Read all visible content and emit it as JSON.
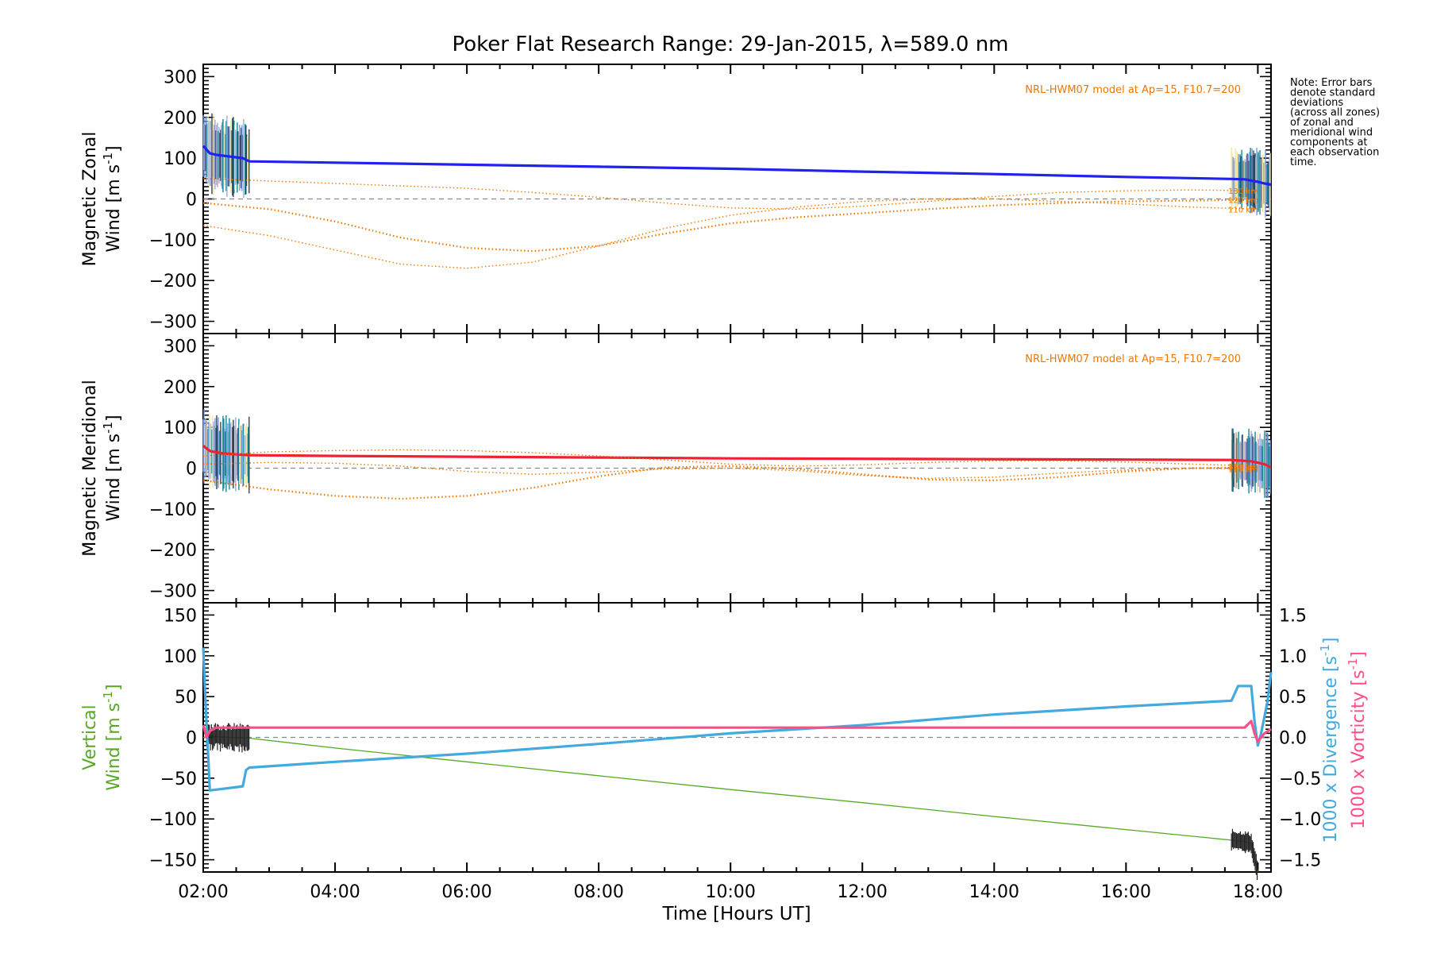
{
  "title": "Poker Flat Research Range: 29-Jan-2015, λ=589.0 nm",
  "xlabel": "Time [Hours UT]",
  "note": [
    "Note: Error bars",
    "denote standard",
    "deviations",
    "(across all zones)",
    "of zonal and",
    "meridional wind",
    "components at",
    "each observation",
    "time."
  ],
  "colors": {
    "zonal": "#2222ee",
    "meridional": "#ee2233",
    "model": "#ee7700",
    "vertical": "#55aa22",
    "divergence": "#44aadd",
    "vorticity": "#ff4d88",
    "err_yellow": "#f2e6a0",
    "err_lavender": "#a8a8d0",
    "err_blue": "#7799dd",
    "err_teal": "#118899",
    "zero_line": "#888888"
  },
  "chart_data": [
    {
      "type": "line",
      "id": "zonal",
      "ylabel_lines": [
        "Magnetic Zonal",
        "Wind [m s^-1]"
      ],
      "ylim": [
        -330,
        330
      ],
      "yticks": [
        300,
        200,
        100,
        0,
        -100,
        -200,
        -300
      ],
      "ytick_labels": [
        "300",
        "200",
        "100",
        "0",
        "−100",
        "−200",
        "−300"
      ],
      "xlim": [
        2.0,
        18.2
      ],
      "model_label": "NRL-HWM07 model at Ap=15, F10.7=200",
      "model_altitudes": [
        "130 km",
        "120 km",
        "110 km"
      ],
      "series": [
        {
          "name": "Magnetic Zonal Wind",
          "x": [
            2.0,
            2.1,
            2.2,
            2.4,
            2.6,
            2.7,
            4,
            6,
            8,
            10,
            12,
            14,
            16,
            17.6,
            17.8,
            18.0,
            18.1,
            18.2
          ],
          "y": [
            130,
            112,
            108,
            104,
            100,
            92,
            89,
            84,
            79,
            74,
            67,
            61,
            54,
            49,
            48,
            42,
            38,
            35
          ]
        },
        {
          "name": "Model 130 km",
          "x": [
            2.0,
            3,
            4,
            5,
            6,
            7,
            8,
            9,
            10,
            11,
            12,
            13,
            14,
            15,
            16,
            17,
            18
          ],
          "y": [
            50,
            44,
            38,
            32,
            26,
            16,
            4,
            -10,
            -22,
            -25,
            -18,
            -6,
            6,
            16,
            20,
            22,
            20
          ]
        },
        {
          "name": "Model 120 km",
          "x": [
            2.0,
            3,
            4,
            5,
            6,
            7,
            8,
            9,
            10,
            11,
            12,
            13,
            14,
            15,
            16,
            17,
            18
          ],
          "y": [
            -10,
            -25,
            -55,
            -95,
            -120,
            -128,
            -115,
            -85,
            -60,
            -45,
            -35,
            -25,
            -16,
            -10,
            -6,
            -4,
            -2
          ]
        },
        {
          "name": "Model 110 km",
          "x": [
            2.0,
            3,
            4,
            5,
            6,
            7,
            8,
            9,
            10,
            11,
            12,
            13,
            14,
            15,
            16,
            17,
            18
          ],
          "y": [
            -65,
            -90,
            -125,
            -160,
            -170,
            -155,
            -115,
            -72,
            -40,
            -20,
            -6,
            0,
            0,
            -6,
            -12,
            -20,
            -25
          ]
        }
      ]
    },
    {
      "type": "line",
      "id": "meridional",
      "ylabel_lines": [
        "Magnetic Meridional",
        "Wind [m s^-1]"
      ],
      "ylim": [
        -330,
        330
      ],
      "yticks": [
        300,
        200,
        100,
        0,
        -100,
        -200,
        -300
      ],
      "ytick_labels": [
        "300",
        "200",
        "100",
        "0",
        "−100",
        "−200",
        "−300"
      ],
      "xlim": [
        2.0,
        18.2
      ],
      "model_label": "NRL-HWM07 model at Ap=15, F10.7=200",
      "model_altitudes": [
        "130 km",
        "120 km",
        "110 km"
      ],
      "series": [
        {
          "name": "Magnetic Meridional Wind",
          "x": [
            2.0,
            2.1,
            2.3,
            2.7,
            4,
            6,
            8,
            10,
            12,
            14,
            16,
            17.6,
            17.9,
            18.1,
            18.2
          ],
          "y": [
            55,
            42,
            36,
            32,
            30,
            28,
            26,
            24,
            23,
            22,
            21,
            20,
            17,
            10,
            2
          ]
        },
        {
          "name": "Model 130 km",
          "x": [
            2.0,
            3,
            4,
            5,
            6,
            7,
            8,
            9,
            10,
            11,
            12,
            13,
            14,
            15,
            16,
            17,
            18
          ],
          "y": [
            30,
            40,
            43,
            45,
            43,
            38,
            30,
            20,
            10,
            5,
            8,
            14,
            18,
            18,
            15,
            10,
            5
          ]
        },
        {
          "name": "Model 120 km",
          "x": [
            2.0,
            3,
            4,
            5,
            6,
            7,
            8,
            9,
            10,
            11,
            12,
            13,
            14,
            15,
            16,
            17,
            18
          ],
          "y": [
            -30,
            -52,
            -68,
            -75,
            -68,
            -48,
            -20,
            2,
            5,
            -2,
            -15,
            -28,
            -30,
            -22,
            -8,
            0,
            2
          ]
        },
        {
          "name": "Model 110 km",
          "x": [
            2.0,
            3,
            4,
            5,
            6,
            7,
            8,
            9,
            10,
            11,
            12,
            13,
            14,
            15,
            16,
            17,
            18
          ],
          "y": [
            10,
            14,
            12,
            5,
            -8,
            -15,
            -10,
            -2,
            0,
            -6,
            -18,
            -25,
            -22,
            -12,
            -4,
            0,
            -2
          ]
        }
      ]
    },
    {
      "type": "line",
      "id": "vertical",
      "ylabel_lines": [
        "Vertical",
        "Wind [m s^-1]"
      ],
      "ylim": [
        -165,
        165
      ],
      "yticks": [
        150,
        100,
        50,
        0,
        -50,
        -100,
        -150
      ],
      "ytick_labels": [
        "150",
        "100",
        "50",
        "0",
        "−50",
        "−100",
        "−150"
      ],
      "y2lim": [
        -1.65,
        1.65
      ],
      "y2ticks": [
        1.5,
        1.0,
        0.5,
        0.0,
        -0.5,
        -1.0,
        -1.5
      ],
      "y2tick_labels": [
        "1.5",
        "1.0",
        "0.5",
        "0.0",
        "−0.5",
        "−1.0",
        "−1.5"
      ],
      "y2label_divergence": "1000 x Divergence [s^-1]",
      "y2label_vorticity": "1000 x Vorticity [s^-1]",
      "xlim": [
        2.0,
        18.2
      ],
      "xticks": [
        2,
        4,
        6,
        8,
        10,
        12,
        14,
        16,
        18
      ],
      "xtick_labels": [
        "02:00",
        "04:00",
        "06:00",
        "08:00",
        "10:00",
        "12:00",
        "14:00",
        "16:00",
        "18:00"
      ],
      "series": [
        {
          "name": "Vertical Wind",
          "axis": "left",
          "x": [
            2.05,
            2.1,
            2.2,
            2.4,
            2.7,
            4,
            6,
            8,
            10,
            12,
            14,
            16,
            17.6,
            17.8,
            17.9,
            18.0
          ],
          "y": [
            5,
            2,
            1,
            0,
            -1,
            -13,
            -30,
            -47,
            -64,
            -80,
            -97,
            -113,
            -126,
            -128,
            -130,
            -165
          ]
        },
        {
          "name": "1000 x Divergence",
          "axis": "right",
          "x": [
            2.0,
            2.03,
            2.08,
            2.1,
            2.6,
            2.65,
            2.7,
            4,
            6,
            8,
            10,
            12,
            14,
            16,
            17.6,
            17.7,
            17.9,
            17.95,
            18.0,
            18.05,
            18.15,
            18.2
          ],
          "y": [
            1.1,
            0.5,
            -0.3,
            -0.65,
            -0.6,
            -0.4,
            -0.37,
            -0.3,
            -0.2,
            -0.08,
            0.05,
            0.15,
            0.28,
            0.38,
            0.45,
            0.63,
            0.63,
            0.2,
            -0.1,
            0.05,
            0.45,
            0.8
          ]
        },
        {
          "name": "1000 x Vorticity",
          "axis": "right",
          "x": [
            2.0,
            2.05,
            2.1,
            2.2,
            2.4,
            4,
            6,
            8,
            10,
            12,
            14,
            16,
            17.6,
            17.8,
            17.9,
            17.95,
            18.0,
            18.1,
            18.2
          ],
          "y": [
            0.15,
            0.0,
            0.08,
            0.12,
            0.12,
            0.12,
            0.12,
            0.12,
            0.12,
            0.12,
            0.12,
            0.12,
            0.12,
            0.12,
            0.2,
            0.05,
            -0.05,
            0.05,
            0.1
          ]
        }
      ]
    }
  ]
}
